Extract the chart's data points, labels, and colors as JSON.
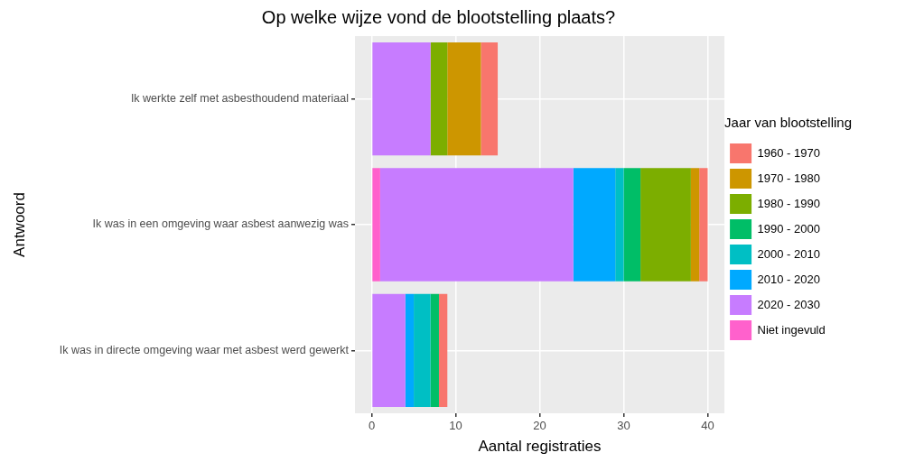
{
  "chart_data": {
    "type": "bar",
    "orientation": "horizontal",
    "stacked": true,
    "title": "Op welke wijze vond de blootstelling plaats?",
    "xlabel": "Aantal registraties",
    "ylabel": "Antwoord",
    "legend_title": "Jaar van blootstelling",
    "legend": "right",
    "grid": true,
    "categories": [
      "Ik werkte zelf met asbesthoudend materiaal",
      "Ik was in een omgeving waar asbest aanwezig was",
      "Ik was in directe omgeving waar met asbest werd gewerkt"
    ],
    "series": [
      {
        "name": "Niet ingevuld",
        "color": "#ff61cc",
        "values": [
          0,
          1,
          0
        ]
      },
      {
        "name": "2020 - 2030",
        "color": "#c77cff",
        "values": [
          7,
          23,
          4
        ]
      },
      {
        "name": "2010 - 2020",
        "color": "#00a9ff",
        "values": [
          0,
          5,
          1
        ]
      },
      {
        "name": "2000 - 2010",
        "color": "#00bfc4",
        "values": [
          0,
          1,
          2
        ]
      },
      {
        "name": "1990 - 2000",
        "color": "#00be67",
        "values": [
          0,
          2,
          1
        ]
      },
      {
        "name": "1980 - 1990",
        "color": "#7cae00",
        "values": [
          2,
          6,
          0
        ]
      },
      {
        "name": "1970 - 1980",
        "color": "#cd9600",
        "values": [
          4,
          1,
          0
        ]
      },
      {
        "name": "1960 - 1970",
        "color": "#f8766d",
        "values": [
          2,
          1,
          1
        ]
      }
    ],
    "xlim": [
      -2,
      42
    ],
    "xticks": [
      0,
      10,
      20,
      30,
      40
    ]
  }
}
